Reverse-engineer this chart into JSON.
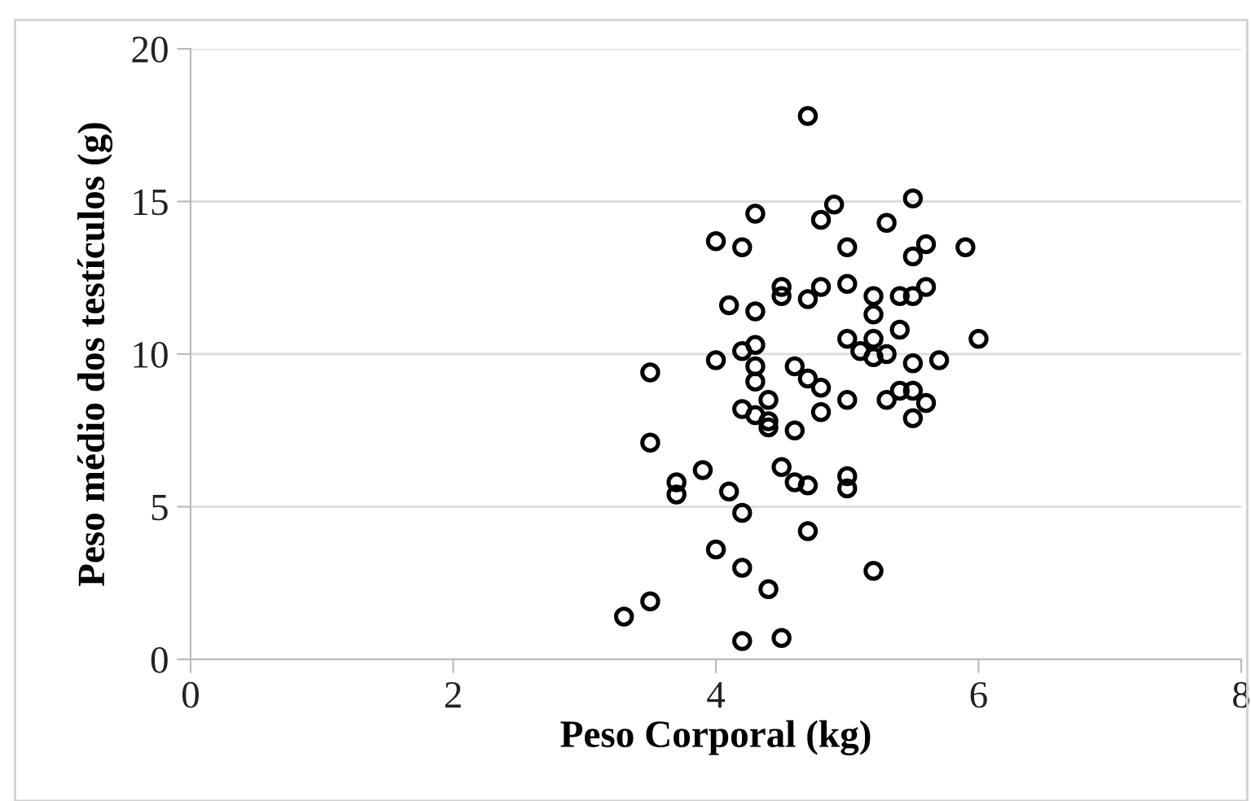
{
  "chart_data": {
    "type": "scatter",
    "xlabel": "Peso Corporal (kg)",
    "ylabel": "Peso médio dos testículos (g)",
    "xlim": [
      0,
      8
    ],
    "ylim": [
      0,
      20
    ],
    "xticks": [
      0,
      2,
      4,
      6,
      8
    ],
    "yticks": [
      0,
      5,
      10,
      15,
      20
    ],
    "grid": "y",
    "marker": "circle",
    "legend": false,
    "series": [
      {
        "color": "#000000",
        "x": [
          4.7,
          4.3,
          4.9,
          5.5,
          4.8,
          5.3,
          4.0,
          4.2,
          5.0,
          5.6,
          5.5,
          5.9,
          4.5,
          4.5,
          4.7,
          4.8,
          5.0,
          5.2,
          5.2,
          5.4,
          5.5,
          5.6,
          4.1,
          4.3,
          5.4,
          5.0,
          5.1,
          5.2,
          5.2,
          5.3,
          6.0,
          4.2,
          4.3,
          4.0,
          4.3,
          4.3,
          4.6,
          4.7,
          4.8,
          5.5,
          5.7,
          3.5,
          4.4,
          4.2,
          4.3,
          4.4,
          4.4,
          4.6,
          4.8,
          5.0,
          5.3,
          5.4,
          5.5,
          5.5,
          5.6,
          3.5,
          3.9,
          3.7,
          3.7,
          4.1,
          4.2,
          4.5,
          4.6,
          4.7,
          5.0,
          5.0,
          4.7,
          4.0,
          4.2,
          4.4,
          5.2,
          3.5,
          3.3,
          4.2,
          4.5
        ],
        "values": [
          17.8,
          14.6,
          14.9,
          15.1,
          14.4,
          14.3,
          13.7,
          13.5,
          13.5,
          13.6,
          13.2,
          13.5,
          12.2,
          11.9,
          11.8,
          12.2,
          12.3,
          11.9,
          11.3,
          11.9,
          11.9,
          12.2,
          11.6,
          11.4,
          10.8,
          10.5,
          10.1,
          10.5,
          9.9,
          10.0,
          10.5,
          10.1,
          10.3,
          9.8,
          9.6,
          9.1,
          9.6,
          9.2,
          8.9,
          9.7,
          9.8,
          9.4,
          8.5,
          8.2,
          8.0,
          7.8,
          7.6,
          7.5,
          8.1,
          8.5,
          8.5,
          8.8,
          8.8,
          7.9,
          8.4,
          7.1,
          6.2,
          5.8,
          5.4,
          5.5,
          4.8,
          6.3,
          5.8,
          5.7,
          6.0,
          5.6,
          4.2,
          3.6,
          3.0,
          2.3,
          2.9,
          1.9,
          1.4,
          0.6,
          0.7
        ]
      }
    ]
  }
}
